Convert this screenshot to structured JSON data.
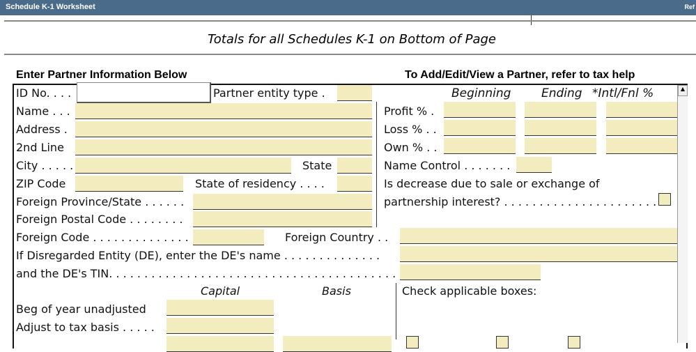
{
  "window": {
    "title": "Schedule K-1 Worksheet",
    "right_label": "Ref"
  },
  "banner": "Totals for all Schedules K-1 on Bottom of Page",
  "section": {
    "left_heading": "Enter Partner Information Below",
    "right_heading": "To Add/Edit/View a Partner, refer to tax help"
  },
  "labels": {
    "id_no": "ID No. . . .",
    "partner_entity_type": "Partner entity type .",
    "name": "Name . . .",
    "address": "Address .",
    "second_line": "2nd Line",
    "city": "City . . . . .",
    "state": "State",
    "zip": "ZIP Code",
    "state_residency": "State of residency . . . .",
    "foreign_province": "Foreign Province/State . . . . . .",
    "foreign_postal": "Foreign Postal Code . . . . . . . .",
    "foreign_code": "Foreign Code . . . . . . . . . . . . . . .",
    "foreign_country": "Foreign Country . .",
    "de_name": "If Disregarded Entity (DE), enter the DE's name . . . . . . . . . . . . . .",
    "de_tin": "and the DE's TIN. . . . . . . . . . . . . . . . . . . . . . . . . . . . . . . . . . . . . . . . . . . . . . . .",
    "beginning": "Beginning",
    "ending": "Ending",
    "intl_fnl": "*Intl/Fnl %",
    "profit": "Profit % .",
    "loss": "Loss % . .",
    "own": "Own % . .",
    "name_control": "Name Control . . . . . . .",
    "decrease_1": "Is decrease due to sale or exchange of",
    "decrease_2": "partnership interest? . . . . . . . . . . . . . . . . . . . . . . .",
    "capital": "Capital",
    "basis": "Basis",
    "check_boxes": "Check applicable boxes:",
    "beg_year": "Beg of year unadjusted",
    "adjust": "Adjust to tax basis . . . . ."
  },
  "values": {
    "id_no": ""
  },
  "colors": {
    "titlebar": "#4a6b8a",
    "field": "#f3ecbf"
  }
}
